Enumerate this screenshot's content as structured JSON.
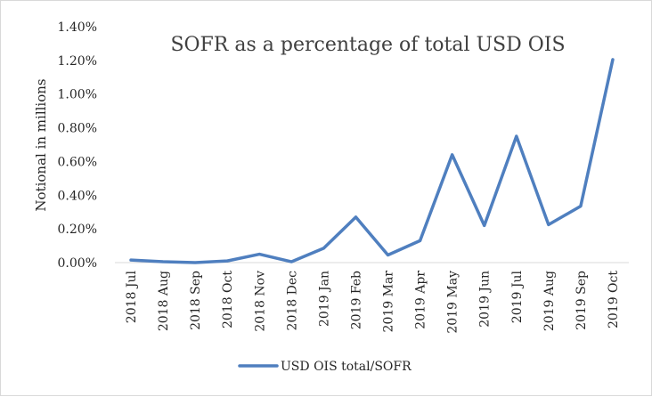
{
  "chart_data": {
    "type": "line",
    "title": "SOFR as a percentage of total USD OIS",
    "xlabel": "",
    "ylabel": "Notional in millions",
    "categories": [
      "2018 Jul",
      "2018 Aug",
      "2018 Sep",
      "2018 Oct",
      "2018 Nov",
      "2018 Dec",
      "2019 Jan",
      "2019 Feb",
      "2019 Mar",
      "2019 Apr",
      "2019 May",
      "2019 Jun",
      "2019 Jul",
      "2019 Aug",
      "2019 Sep",
      "2019 Oct"
    ],
    "yticks": [
      "0.00%",
      "0.20%",
      "0.40%",
      "0.60%",
      "0.80%",
      "1.00%",
      "1.20%",
      "1.40%"
    ],
    "ylim": [
      0,
      1.4
    ],
    "grid": false,
    "legend_position": "bottom",
    "series": [
      {
        "name": "USD OIS total/SOFR",
        "color": "#4f7fbf",
        "values": [
          0.015,
          0.005,
          0.0,
          0.01,
          0.05,
          0.005,
          0.085,
          0.27,
          0.045,
          0.13,
          0.64,
          0.22,
          0.75,
          0.225,
          0.335,
          1.205
        ]
      }
    ]
  }
}
